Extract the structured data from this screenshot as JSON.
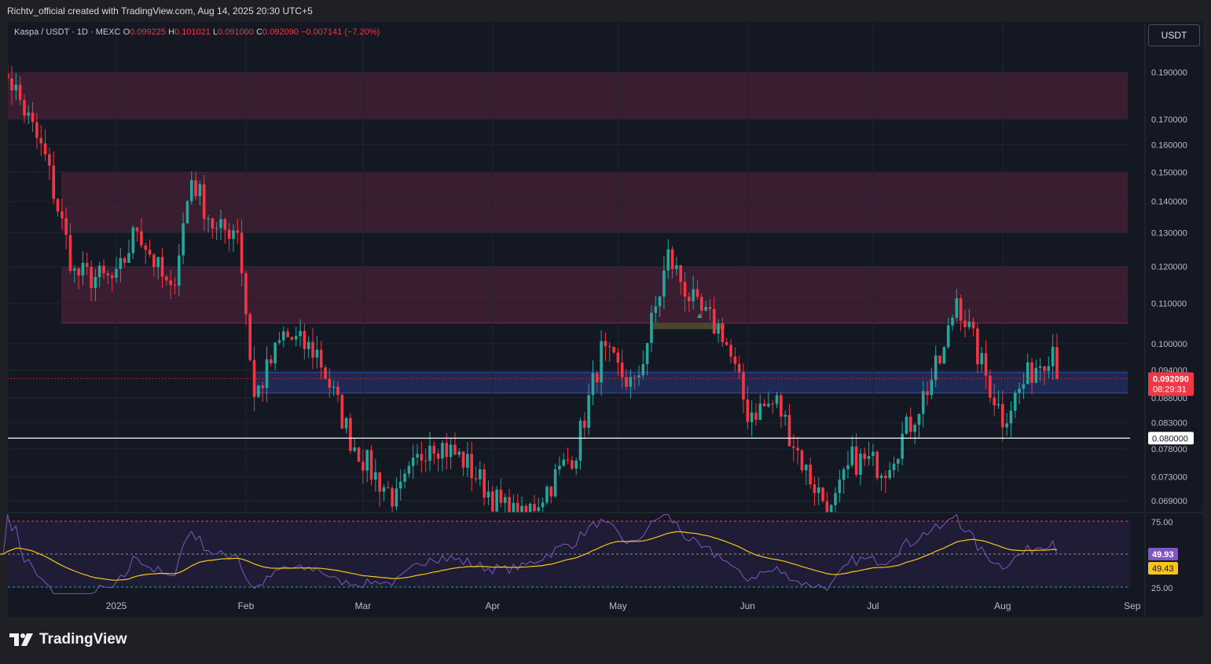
{
  "header": {
    "attribution": "Richtv_official created with TradingView.com, Aug 14, 2025 20:30 UTC+5"
  },
  "legend": {
    "symbol": "Kaspa / USDT · 1D · MEXC",
    "open_label": "O",
    "open": "0.099225",
    "high_label": "H",
    "high": "0.101021",
    "low_label": "L",
    "low": "0.091000",
    "close_label": "C",
    "close": "0.092090",
    "change": "−0.007141 (−7.20%)"
  },
  "currency_button": "USDT",
  "brand": "TradingView",
  "colors": {
    "up": "#26a69a",
    "down": "#f23645",
    "rsi": "#7e57c2",
    "rsi_ma": "#f5c518",
    "resistance_zone": "#3d1f33",
    "support_zone": "#1f2b5a",
    "order_block": "#4a4a2a"
  },
  "chart_data": {
    "type": "candlestick",
    "price_scale": "log",
    "price_ticks": [
      "0.190000",
      "0.170000",
      "0.160000",
      "0.150000",
      "0.140000",
      "0.130000",
      "0.120000",
      "0.110000",
      "0.100000",
      "0.094000",
      "0.088000",
      "0.083000",
      "0.078000",
      "0.073000",
      "0.069000"
    ],
    "time_ticks": [
      "2025",
      "Feb",
      "Mar",
      "Apr",
      "May",
      "Jun",
      "Jul",
      "Aug",
      "Sep"
    ],
    "last_price": "0.092090",
    "countdown": "08:29:31",
    "horizontal_line": "0.080000",
    "zones": [
      {
        "type": "resistance",
        "from": 0.17,
        "to": 0.19
      },
      {
        "type": "resistance",
        "from": 0.13,
        "to": 0.15
      },
      {
        "type": "resistance",
        "from": 0.105,
        "to": 0.12
      },
      {
        "type": "support",
        "from": 0.089,
        "to": 0.0935
      },
      {
        "type": "order_block",
        "from": 0.1035,
        "to": 0.105
      }
    ],
    "keypoints": [
      {
        "date": "2024-12-04",
        "close": 0.178
      },
      {
        "date": "2024-12-06",
        "close": 0.19
      },
      {
        "date": "2024-12-15",
        "close": 0.155
      },
      {
        "date": "2024-12-22",
        "close": 0.118
      },
      {
        "date": "2025-01-01",
        "close": 0.116
      },
      {
        "date": "2025-01-06",
        "close": 0.132
      },
      {
        "date": "2025-01-14",
        "close": 0.112
      },
      {
        "date": "2025-01-19",
        "close": 0.148
      },
      {
        "date": "2025-01-25",
        "close": 0.13
      },
      {
        "date": "2025-01-30",
        "close": 0.132
      },
      {
        "date": "2025-02-03",
        "close": 0.088
      },
      {
        "date": "2025-02-10",
        "close": 0.102
      },
      {
        "date": "2025-02-18",
        "close": 0.098
      },
      {
        "date": "2025-02-26",
        "close": 0.08
      },
      {
        "date": "2025-03-03",
        "close": 0.074
      },
      {
        "date": "2025-03-09",
        "close": 0.069
      },
      {
        "date": "2025-03-17",
        "close": 0.08
      },
      {
        "date": "2025-03-25",
        "close": 0.076
      },
      {
        "date": "2025-04-03",
        "close": 0.068
      },
      {
        "date": "2025-04-08",
        "close": 0.066
      },
      {
        "date": "2025-04-14",
        "close": 0.071
      },
      {
        "date": "2025-04-21",
        "close": 0.078
      },
      {
        "date": "2025-04-27",
        "close": 0.098
      },
      {
        "date": "2025-05-05",
        "close": 0.09
      },
      {
        "date": "2025-05-11",
        "close": 0.113
      },
      {
        "date": "2025-05-13",
        "close": 0.123
      },
      {
        "date": "2025-05-20",
        "close": 0.108
      },
      {
        "date": "2025-05-26",
        "close": 0.103
      },
      {
        "date": "2025-06-01",
        "close": 0.085
      },
      {
        "date": "2025-06-08",
        "close": 0.087
      },
      {
        "date": "2025-06-15",
        "close": 0.074
      },
      {
        "date": "2025-06-21",
        "close": 0.067
      },
      {
        "date": "2025-06-26",
        "close": 0.076
      },
      {
        "date": "2025-07-04",
        "close": 0.075
      },
      {
        "date": "2025-07-10",
        "close": 0.083
      },
      {
        "date": "2025-07-18",
        "close": 0.098
      },
      {
        "date": "2025-07-21",
        "close": 0.112
      },
      {
        "date": "2025-07-27",
        "close": 0.095
      },
      {
        "date": "2025-08-01",
        "close": 0.084
      },
      {
        "date": "2025-08-08",
        "close": 0.094
      },
      {
        "date": "2025-08-13",
        "close": 0.0993
      },
      {
        "date": "2025-08-14",
        "close": 0.09209
      }
    ],
    "rsi": {
      "value": "49.93",
      "ma_value": "49.43",
      "levels": [
        "75.00",
        "25.00"
      ]
    }
  }
}
